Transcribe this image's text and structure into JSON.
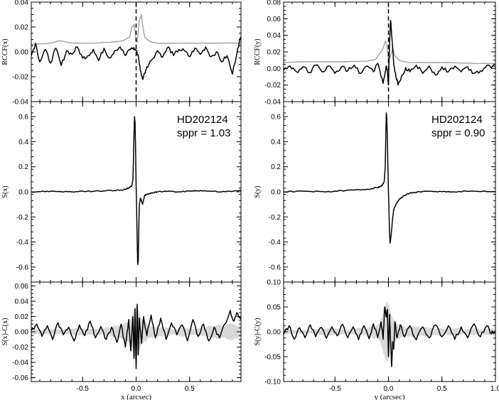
{
  "colors": {
    "black": "#000000",
    "gray": "#a0a0a0",
    "lightgray": "#d8d8d8"
  },
  "chart_data": [
    {
      "id": "rccf_x",
      "type": "line",
      "ylabel": "RCCF(x)",
      "xlim": [
        -0.98,
        0.98
      ],
      "ylim": [
        -0.04,
        0.04
      ],
      "yticks": [
        {
          "v": 0.04,
          "t": "0.04"
        },
        {
          "v": 0.02,
          "t": "0.02"
        },
        {
          "v": 0,
          "t": "0.00"
        },
        {
          "v": -0.02,
          "t": "-0.02"
        },
        {
          "v": -0.04,
          "t": "-0.04"
        }
      ],
      "vline": 0,
      "series": [
        {
          "color": "gray",
          "x": [
            -0.98,
            -0.8,
            -0.72,
            -0.6,
            -0.4,
            -0.2,
            -0.12,
            -0.06,
            -0.04,
            -0.02,
            -0.01,
            0.0,
            0.01,
            0.03,
            0.05,
            0.06,
            0.08,
            0.1,
            0.14,
            0.2,
            0.4,
            0.6,
            0.8,
            0.98
          ],
          "y": [
            0.006,
            0.007,
            0.009,
            0.007,
            0.007,
            0.008,
            0.009,
            0.012,
            0.02,
            0.022,
            0.017,
            0.009,
            0.008,
            0.025,
            0.03,
            0.022,
            0.012,
            0.01,
            0.008,
            0.007,
            0.007,
            0.007,
            0.007,
            0.007
          ]
        },
        {
          "color": "black",
          "x": [
            -0.98,
            -0.94,
            -0.9,
            -0.85,
            -0.8,
            -0.75,
            -0.7,
            -0.65,
            -0.6,
            -0.55,
            -0.5,
            -0.45,
            -0.4,
            -0.35,
            -0.3,
            -0.25,
            -0.2,
            -0.15,
            -0.1,
            -0.06,
            -0.03,
            -0.01,
            0.0,
            0.02,
            0.04,
            0.06,
            0.08,
            0.1,
            0.14,
            0.2,
            0.25,
            0.3,
            0.35,
            0.4,
            0.45,
            0.5,
            0.55,
            0.6,
            0.65,
            0.7,
            0.75,
            0.8,
            0.85,
            0.9,
            0.95,
            0.98
          ],
          "y": [
            -0.003,
            0.007,
            -0.008,
            0.002,
            -0.009,
            0.003,
            -0.011,
            0.001,
            -0.002,
            0.004,
            -0.005,
            -0.003,
            0.002,
            -0.007,
            0.003,
            -0.005,
            0.001,
            0.004,
            -0.003,
            0.002,
            0.003,
            0.002,
            0.001,
            -0.003,
            -0.015,
            -0.022,
            -0.017,
            -0.012,
            -0.007,
            0.001,
            -0.004,
            0.004,
            -0.003,
            0.002,
            0.001,
            -0.004,
            0.003,
            -0.002,
            0.004,
            -0.004,
            0.0,
            -0.008,
            -0.003,
            -0.018,
            0.003,
            0.012
          ]
        }
      ]
    },
    {
      "id": "rccf_y",
      "type": "line",
      "ylabel": "RCCF(y)",
      "xlim": [
        -0.98,
        1.0
      ],
      "ylim": [
        -0.04,
        0.08
      ],
      "yticks": [
        {
          "v": 0.08,
          "t": "0.08"
        },
        {
          "v": 0.06,
          "t": "0.06"
        },
        {
          "v": 0.04,
          "t": "0.04"
        },
        {
          "v": 0.02,
          "t": "0.02"
        },
        {
          "v": 0,
          "t": "0.00"
        },
        {
          "v": -0.02,
          "t": "-0.02"
        },
        {
          "v": -0.04,
          "t": "-0.04"
        }
      ],
      "vline": 0,
      "series": [
        {
          "color": "gray",
          "x": [
            -0.98,
            -0.8,
            -0.6,
            -0.4,
            -0.2,
            -0.12,
            -0.07,
            -0.05,
            -0.03,
            -0.015,
            0.0,
            0.02,
            0.04,
            0.06,
            0.1,
            0.15,
            0.2,
            0.4,
            0.6,
            0.8,
            1.0
          ],
          "y": [
            0.007,
            0.008,
            0.008,
            0.008,
            0.009,
            0.011,
            0.02,
            0.024,
            0.033,
            0.028,
            0.01,
            0.015,
            0.025,
            0.015,
            0.01,
            0.008,
            0.007,
            0.007,
            0.007,
            0.006,
            0.006
          ]
        },
        {
          "color": "black",
          "x": [
            -0.98,
            -0.92,
            -0.86,
            -0.8,
            -0.74,
            -0.68,
            -0.62,
            -0.56,
            -0.5,
            -0.44,
            -0.38,
            -0.32,
            -0.26,
            -0.2,
            -0.14,
            -0.1,
            -0.07,
            -0.05,
            -0.035,
            -0.02,
            -0.01,
            0.0,
            0.01,
            0.02,
            0.03,
            0.05,
            0.07,
            0.09,
            0.12,
            0.16,
            0.2,
            0.26,
            0.32,
            0.38,
            0.44,
            0.5,
            0.56,
            0.62,
            0.68,
            0.74,
            0.8,
            0.86,
            0.92,
            1.0
          ],
          "y": [
            -0.002,
            0.003,
            -0.004,
            0.002,
            -0.005,
            0.004,
            -0.004,
            0.003,
            -0.006,
            0.002,
            -0.003,
            0.004,
            -0.006,
            0.003,
            -0.004,
            0.006,
            -0.01,
            -0.018,
            -0.008,
            0.003,
            -0.005,
            -0.02,
            0.03,
            0.058,
            0.04,
            0.004,
            -0.01,
            -0.02,
            -0.01,
            0.001,
            -0.004,
            0.004,
            -0.006,
            0.003,
            -0.008,
            0.002,
            -0.004,
            0.003,
            -0.004,
            0.002,
            -0.006,
            -0.003,
            0.004,
            0.002
          ]
        }
      ]
    },
    {
      "id": "s_x",
      "type": "line",
      "ylabel": "S(x)",
      "xlim": [
        -0.98,
        0.98
      ],
      "ylim": [
        -0.72,
        0.72
      ],
      "yticks": [
        {
          "v": 0.6,
          "t": "0.6"
        },
        {
          "v": 0.4,
          "t": "0.4"
        },
        {
          "v": 0.2,
          "t": "0.2"
        },
        {
          "v": 0,
          "t": "0.0"
        },
        {
          "v": -0.2,
          "t": "-0.2"
        },
        {
          "v": -0.4,
          "t": "-0.4"
        },
        {
          "v": -0.6,
          "t": "-0.6"
        }
      ],
      "annotation": [
        "HD202124",
        "sppr = 1.03"
      ],
      "series": [
        {
          "color": "black",
          "x": [
            -0.98,
            -0.8,
            -0.6,
            -0.4,
            -0.2,
            -0.1,
            -0.06,
            -0.04,
            -0.03,
            -0.025,
            -0.02,
            -0.015,
            -0.01,
            -0.005,
            0.0,
            0.005,
            0.01,
            0.015,
            0.02,
            0.025,
            0.03,
            0.04,
            0.05,
            0.06,
            0.08,
            0.1,
            0.14,
            0.2,
            0.3,
            0.4,
            0.5,
            0.6,
            0.8,
            0.98
          ],
          "y": [
            0.0,
            0.005,
            0.0,
            0.005,
            0.01,
            0.02,
            0.035,
            0.05,
            0.1,
            0.25,
            0.45,
            0.6,
            0.55,
            0.35,
            0.05,
            -0.15,
            -0.4,
            -0.58,
            -0.55,
            -0.3,
            -0.1,
            -0.05,
            -0.07,
            -0.1,
            -0.03,
            -0.02,
            -0.01,
            0.0,
            0.005,
            0.0,
            0.005,
            0.01,
            0.0,
            0.01
          ]
        }
      ]
    },
    {
      "id": "s_y",
      "type": "line",
      "ylabel": "S(y)",
      "xlim": [
        -0.98,
        1.0
      ],
      "ylim": [
        -0.72,
        0.72
      ],
      "yticks": [
        {
          "v": 0.6,
          "t": "0.6"
        },
        {
          "v": 0.4,
          "t": "0.4"
        },
        {
          "v": 0.2,
          "t": "0.2"
        },
        {
          "v": 0,
          "t": "0.0"
        },
        {
          "v": -0.2,
          "t": "-0.2"
        },
        {
          "v": -0.4,
          "t": "-0.4"
        },
        {
          "v": -0.6,
          "t": "-0.6"
        }
      ],
      "annotation": [
        "HD202124",
        "sppr = 0.90"
      ],
      "series": [
        {
          "color": "black",
          "x": [
            -0.98,
            -0.8,
            -0.6,
            -0.4,
            -0.2,
            -0.1,
            -0.06,
            -0.04,
            -0.03,
            -0.025,
            -0.02,
            -0.015,
            -0.01,
            -0.005,
            0.0,
            0.005,
            0.01,
            0.015,
            0.02,
            0.03,
            0.04,
            0.05,
            0.07,
            0.1,
            0.15,
            0.2,
            0.3,
            0.4,
            0.6,
            0.8,
            1.0
          ],
          "y": [
            0.0,
            0.005,
            0.0,
            0.01,
            0.02,
            0.035,
            0.05,
            0.08,
            0.2,
            0.45,
            0.63,
            0.58,
            0.4,
            0.2,
            0.0,
            -0.15,
            -0.33,
            -0.41,
            -0.38,
            -0.3,
            -0.2,
            -0.14,
            -0.1,
            -0.06,
            -0.03,
            -0.01,
            0.0,
            0.005,
            0.0,
            0.005,
            0.0
          ]
        }
      ]
    },
    {
      "id": "res_x",
      "type": "line",
      "ylabel": "S(x)-C(x)",
      "xlabel": "x (arcsec)",
      "xlim": [
        -0.98,
        0.98
      ],
      "ylim": [
        -0.065,
        0.065
      ],
      "yticks": [
        {
          "v": 0.06,
          "t": "0.06"
        },
        {
          "v": 0.04,
          "t": "0.04"
        },
        {
          "v": 0.02,
          "t": "0.02"
        },
        {
          "v": 0,
          "t": "0.00"
        },
        {
          "v": -0.02,
          "t": "-0.02"
        },
        {
          "v": -0.04,
          "t": "-0.04"
        },
        {
          "v": -0.06,
          "t": "-0.06"
        }
      ],
      "xticks": [
        {
          "v": -0.5,
          "t": "-0.5"
        },
        {
          "v": 0,
          "t": "0.0"
        },
        {
          "v": 0.5,
          "t": "0.5"
        }
      ],
      "band": {
        "color": "lightgray",
        "x": [
          -0.98,
          -0.3,
          -0.15,
          -0.08,
          -0.04,
          -0.02,
          0.0,
          0.02,
          0.04,
          0.08,
          0.15,
          0.3,
          0.6,
          0.8,
          0.9,
          0.98
        ],
        "hw": [
          0.004,
          0.004,
          0.008,
          0.012,
          0.02,
          0.03,
          0.033,
          0.03,
          0.02,
          0.012,
          0.008,
          0.005,
          0.005,
          0.008,
          0.01,
          0.007
        ]
      },
      "series": [
        {
          "color": "black",
          "x": [
            -0.98,
            -0.93,
            -0.88,
            -0.83,
            -0.78,
            -0.73,
            -0.68,
            -0.63,
            -0.58,
            -0.53,
            -0.48,
            -0.43,
            -0.38,
            -0.33,
            -0.28,
            -0.23,
            -0.18,
            -0.14,
            -0.1,
            -0.07,
            -0.05,
            -0.03,
            -0.02,
            -0.01,
            0.0,
            0.01,
            0.02,
            0.03,
            0.05,
            0.07,
            0.1,
            0.14,
            0.18,
            0.23,
            0.28,
            0.33,
            0.38,
            0.43,
            0.48,
            0.53,
            0.58,
            0.63,
            0.68,
            0.73,
            0.78,
            0.83,
            0.88,
            0.91,
            0.94,
            0.98
          ],
          "y": [
            0.002,
            0.01,
            -0.006,
            0.008,
            -0.01,
            0.012,
            -0.004,
            0.006,
            -0.012,
            0.009,
            -0.005,
            0.014,
            -0.008,
            0.007,
            -0.01,
            0.006,
            -0.014,
            0.01,
            -0.02,
            0.016,
            -0.025,
            0.02,
            -0.035,
            0.03,
            -0.048,
            0.036,
            -0.03,
            0.018,
            -0.015,
            0.02,
            -0.005,
            0.022,
            -0.008,
            0.018,
            -0.01,
            0.012,
            -0.004,
            0.009,
            -0.012,
            0.016,
            -0.006,
            0.01,
            -0.012,
            0.006,
            -0.008,
            0.01,
            0.028,
            0.014,
            0.025,
            0.016
          ]
        }
      ]
    },
    {
      "id": "res_y",
      "type": "line",
      "ylabel": "S(y)-C(y)",
      "xlabel": "y (arcsec)",
      "xlim": [
        -0.98,
        1.0
      ],
      "ylim": [
        -0.1,
        0.1
      ],
      "yticks": [
        {
          "v": 0.1,
          "t": "0.10"
        },
        {
          "v": 0.05,
          "t": "0.05"
        },
        {
          "v": 0,
          "t": "0.00"
        },
        {
          "v": -0.05,
          "t": "-0.05"
        },
        {
          "v": -0.1,
          "t": "-0.10"
        }
      ],
      "xticks": [
        {
          "v": -0.5,
          "t": "-0.5"
        },
        {
          "v": 0,
          "t": "0.0"
        },
        {
          "v": 0.5,
          "t": "0.5"
        },
        {
          "v": 1.0,
          "t": "1.0"
        }
      ],
      "band": {
        "color": "lightgray",
        "x": [
          -0.98,
          -0.3,
          -0.15,
          -0.08,
          -0.05,
          -0.03,
          -0.01,
          0.0,
          0.02,
          0.04,
          0.08,
          0.15,
          0.3,
          0.6,
          1.0
        ],
        "hw": [
          0.006,
          0.006,
          0.01,
          0.018,
          0.04,
          0.055,
          0.06,
          0.055,
          0.04,
          0.025,
          0.015,
          0.01,
          0.007,
          0.006,
          0.006
        ]
      },
      "series": [
        {
          "color": "black",
          "x": [
            -0.98,
            -0.93,
            -0.88,
            -0.83,
            -0.78,
            -0.73,
            -0.68,
            -0.63,
            -0.58,
            -0.53,
            -0.48,
            -0.43,
            -0.38,
            -0.33,
            -0.28,
            -0.23,
            -0.18,
            -0.14,
            -0.1,
            -0.07,
            -0.05,
            -0.035,
            -0.02,
            -0.01,
            0.0,
            0.01,
            0.02,
            0.03,
            0.04,
            0.05,
            0.06,
            0.08,
            0.11,
            0.15,
            0.2,
            0.26,
            0.32,
            0.38,
            0.44,
            0.5,
            0.56,
            0.62,
            0.68,
            0.74,
            0.8,
            0.86,
            0.92,
            0.96,
            1.0
          ],
          "y": [
            -0.005,
            0.012,
            -0.015,
            0.008,
            -0.012,
            0.014,
            -0.01,
            0.009,
            -0.013,
            0.01,
            -0.008,
            0.015,
            -0.012,
            0.01,
            -0.016,
            0.012,
            -0.014,
            0.016,
            -0.012,
            0.02,
            -0.015,
            0.05,
            0.03,
            0.045,
            -0.05,
            0.035,
            -0.02,
            -0.07,
            -0.02,
            -0.035,
            0.02,
            -0.012,
            0.014,
            -0.01,
            0.012,
            -0.016,
            0.01,
            -0.012,
            0.014,
            -0.01,
            0.012,
            -0.015,
            0.01,
            -0.012,
            0.016,
            -0.01,
            0.012,
            -0.004,
            0.002
          ]
        }
      ]
    }
  ]
}
